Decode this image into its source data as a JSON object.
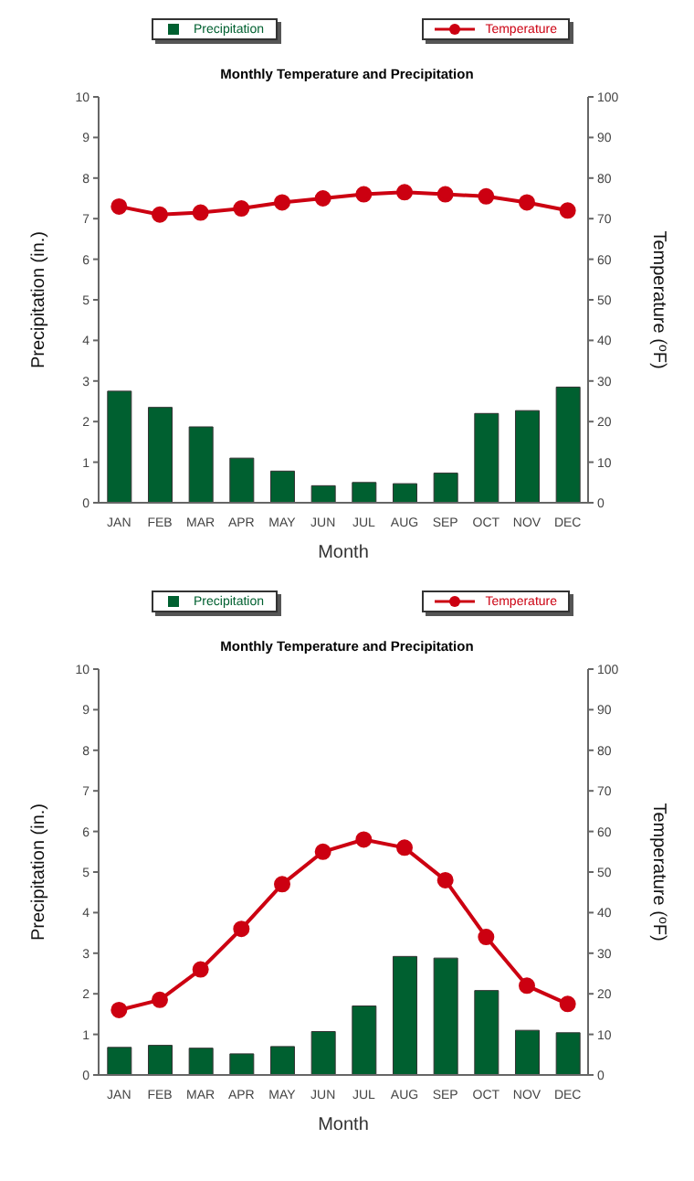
{
  "chart_data": [
    {
      "type": "bar",
      "title": "Monthly Temperature and Precipitation",
      "xlabel": "Month",
      "ylabel": "Precipitation (in.)",
      "y2label": "Temperature ($^{o}$F)",
      "categories": [
        "JAN",
        "FEB",
        "MAR",
        "APR",
        "MAY",
        "JUN",
        "JUL",
        "AUG",
        "SEP",
        "OCT",
        "NOV",
        "DEC"
      ],
      "ylim": [
        0,
        10
      ],
      "yticks": [
        0,
        1,
        2,
        3,
        4,
        5,
        6,
        7,
        8,
        9,
        10
      ],
      "y2lim": [
        0,
        100
      ],
      "y2ticks": [
        0,
        10,
        20,
        30,
        40,
        50,
        60,
        70,
        80,
        90,
        100
      ],
      "legend": "top",
      "grid": false,
      "marker": "circle",
      "series": [
        {
          "name": "Precipitation",
          "color": "#006030",
          "values": [
            2.75,
            2.35,
            1.87,
            1.1,
            0.78,
            0.42,
            0.5,
            0.47,
            0.73,
            2.2,
            2.27,
            2.85
          ]
        },
        {
          "name": "Temperature",
          "type": "line",
          "axis": "y2",
          "color": "#cc0011",
          "values": [
            73,
            71,
            71.5,
            72.5,
            74,
            75,
            76,
            76.5,
            76,
            75.5,
            74,
            72
          ]
        }
      ]
    },
    {
      "type": "bar",
      "title": "Monthly Temperature and Precipitation",
      "xlabel": "Month",
      "ylabel": "Precipitation (in.)",
      "y2label": "Temperature ($^{o}$F)",
      "categories": [
        "JAN",
        "FEB",
        "MAR",
        "APR",
        "MAY",
        "JUN",
        "JUL",
        "AUG",
        "SEP",
        "OCT",
        "NOV",
        "DEC"
      ],
      "ylim": [
        0,
        10
      ],
      "yticks": [
        0,
        1,
        2,
        3,
        4,
        5,
        6,
        7,
        8,
        9,
        10
      ],
      "y2lim": [
        0,
        100
      ],
      "y2ticks": [
        0,
        10,
        20,
        30,
        40,
        50,
        60,
        70,
        80,
        90,
        100
      ],
      "legend": "top",
      "grid": false,
      "marker": "circle",
      "series": [
        {
          "name": "Precipitation",
          "color": "#006030",
          "values": [
            0.68,
            0.73,
            0.66,
            0.52,
            0.7,
            1.07,
            1.7,
            2.92,
            2.88,
            2.08,
            1.1,
            1.04
          ]
        },
        {
          "name": "Temperature",
          "type": "line",
          "axis": "y2",
          "color": "#cc0011",
          "values": [
            16,
            18.5,
            26,
            36,
            47,
            55,
            58,
            56,
            48,
            34,
            22,
            17.5
          ]
        }
      ]
    }
  ]
}
